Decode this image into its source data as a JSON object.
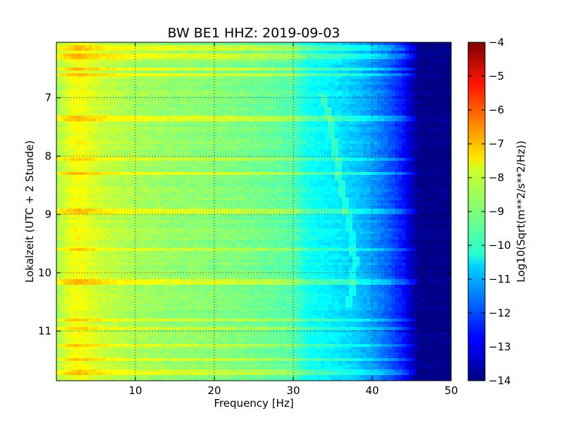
{
  "chart_data": {
    "type": "heatmap",
    "title": "BW BE1 HHZ: 2019-09-03",
    "xlabel": "Frequency [Hz]",
    "ylabel": "Lokalzeit (UTC + 2 Stunde)",
    "xlim": [
      0,
      50
    ],
    "ylim": [
      11.85,
      6.05
    ],
    "y_axis_inverted": true,
    "x_ticks": [
      10,
      20,
      30,
      40,
      50
    ],
    "x_tick_labels": [
      "10",
      "20",
      "30",
      "40",
      "50"
    ],
    "y_ticks": [
      7,
      8,
      9,
      10,
      11
    ],
    "y_tick_labels": [
      "7",
      "8",
      "9",
      "10",
      "11"
    ],
    "grid": true,
    "colormap": "jet",
    "colorbar": {
      "label": "Log10(Sqrt(m**2/s**2/Hz))",
      "range": [
        -14,
        -4
      ],
      "ticks": [
        -4,
        -5,
        -6,
        -7,
        -8,
        -9,
        -10,
        -11,
        -12,
        -13,
        -14
      ],
      "tick_labels": [
        "−4",
        "−5",
        "−6",
        "−7",
        "−8",
        "−9",
        "−10",
        "−11",
        "−12",
        "−13",
        "−14"
      ]
    },
    "spectrum_profile": {
      "frequency_hz": [
        0,
        1,
        2,
        3,
        4,
        6,
        10,
        15,
        20,
        25,
        30,
        31,
        32,
        34,
        36,
        38,
        40,
        42,
        44,
        45,
        46,
        50
      ],
      "log10_value": [
        -8.6,
        -8.2,
        -7.9,
        -7.8,
        -8.0,
        -8.3,
        -8.6,
        -8.8,
        -8.9,
        -9.1,
        -9.4,
        -9.8,
        -10.1,
        -10.3,
        -10.5,
        -10.8,
        -11.2,
        -11.8,
        -12.6,
        -13.4,
        -13.9,
        -13.9
      ]
    },
    "bright_bands_local_hour": [
      6.15,
      6.3,
      6.5,
      6.6,
      7.35,
      8.05,
      8.3,
      8.95,
      9.6,
      10.15,
      10.8,
      10.95,
      11.25,
      11.5,
      11.7
    ],
    "drifting_line": {
      "time_local_hour": [
        6.9,
        7.3,
        7.8,
        8.3,
        8.8,
        9.3,
        9.8,
        10.3,
        10.6
      ],
      "frequency_hz": [
        33.5,
        34.5,
        35.2,
        35.8,
        36.5,
        37.3,
        37.8,
        37.5,
        36.8
      ]
    }
  }
}
